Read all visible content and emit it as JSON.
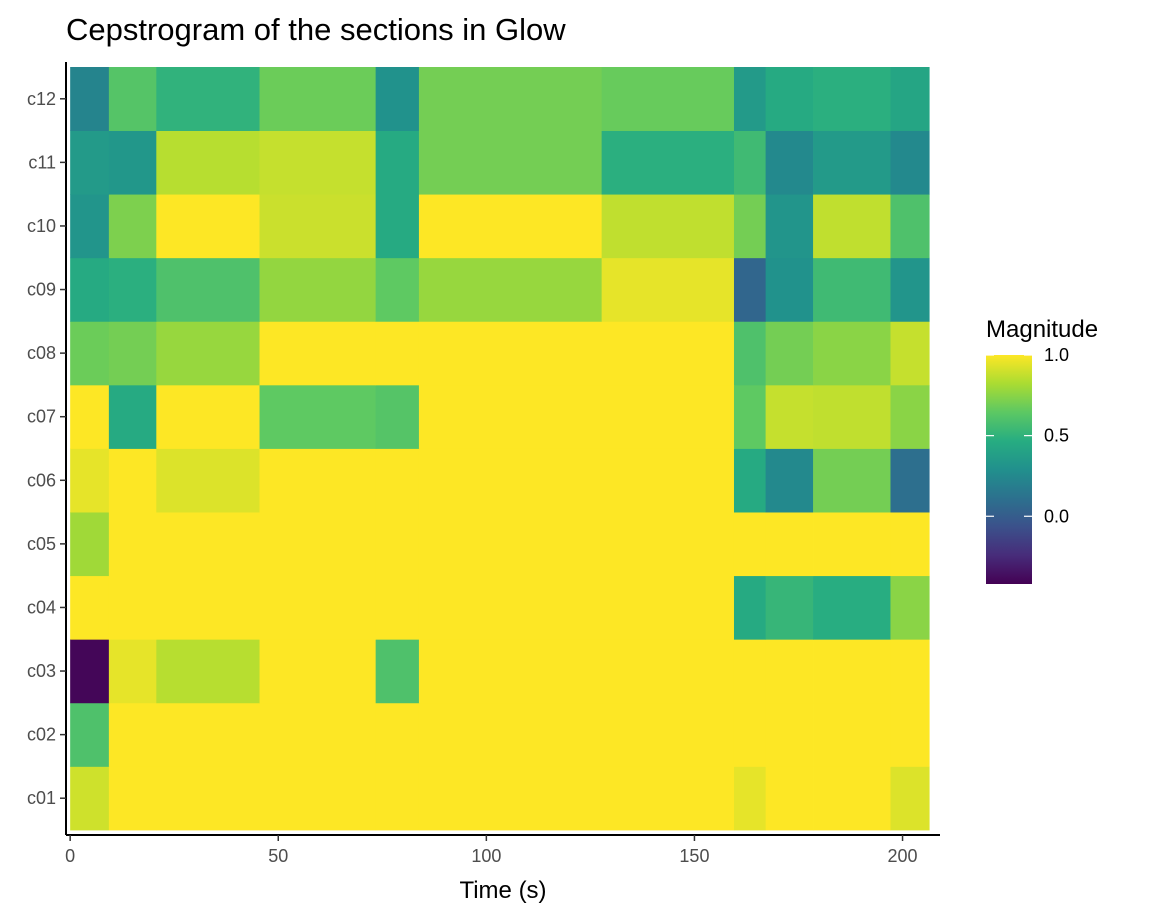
{
  "chart_data": {
    "type": "heatmap",
    "title": "Cepstrogram of the sections in Glow",
    "xlabel": "Time (s)",
    "ylabel": "",
    "xlim": [
      -1,
      209
    ],
    "x_ticks": [
      0,
      50,
      100,
      150,
      200
    ],
    "x_tick_labels": [
      "0",
      "50",
      "100",
      "150",
      "200"
    ],
    "x_edges": [
      0,
      9.3,
      20.7,
      45.5,
      73.4,
      83.8,
      127.7,
      159.5,
      167.1,
      178.5,
      197.1,
      206.4
    ],
    "rows": [
      "c01",
      "c02",
      "c03",
      "c04",
      "c05",
      "c06",
      "c07",
      "c08",
      "c09",
      "c10",
      "c11",
      "c12"
    ],
    "values": [
      [
        0.9,
        1.0,
        1.0,
        1.0,
        1.0,
        1.0,
        1.0,
        0.95,
        1.0,
        1.0,
        0.93
      ],
      [
        0.6,
        1.0,
        1.0,
        1.0,
        1.0,
        1.0,
        1.0,
        1.0,
        1.0,
        1.0,
        1.0
      ],
      [
        -0.4,
        0.95,
        0.85,
        1.0,
        0.6,
        1.0,
        1.0,
        1.0,
        1.0,
        1.0,
        1.0
      ],
      [
        1.0,
        1.0,
        1.0,
        1.0,
        1.0,
        1.0,
        1.0,
        0.45,
        0.52,
        0.47,
        0.75
      ],
      [
        0.8,
        1.0,
        1.0,
        1.0,
        1.0,
        1.0,
        1.0,
        1.0,
        1.0,
        1.0,
        1.0
      ],
      [
        0.95,
        1.0,
        0.93,
        1.0,
        1.0,
        1.0,
        1.0,
        0.45,
        0.25,
        0.7,
        0.1
      ],
      [
        1.0,
        0.45,
        1.0,
        0.65,
        0.62,
        1.0,
        1.0,
        0.65,
        0.88,
        0.87,
        0.75
      ],
      [
        0.68,
        0.7,
        0.78,
        1.0,
        1.0,
        1.0,
        1.0,
        0.6,
        0.7,
        0.75,
        0.88
      ],
      [
        0.45,
        0.48,
        0.6,
        0.77,
        0.65,
        0.78,
        0.95,
        0.05,
        0.3,
        0.55,
        0.32
      ],
      [
        0.32,
        0.72,
        1.0,
        0.89,
        0.45,
        1.0,
        0.87,
        0.7,
        0.32,
        0.87,
        0.6
      ],
      [
        0.35,
        0.33,
        0.85,
        0.88,
        0.45,
        0.7,
        0.48,
        0.55,
        0.25,
        0.35,
        0.25
      ],
      [
        0.22,
        0.62,
        0.5,
        0.68,
        0.3,
        0.7,
        0.67,
        0.35,
        0.45,
        0.48,
        0.42
      ]
    ],
    "legend": {
      "title": "Magnitude",
      "range": [
        -0.42,
        1.0
      ],
      "ticks": [
        0.0,
        0.5,
        1.0
      ],
      "tick_labels": [
        "0.0",
        "0.5",
        "1.0"
      ],
      "position": "right"
    },
    "colormap": [
      "#440154",
      "#472c7a",
      "#3b518b",
      "#2c718e",
      "#21908d",
      "#27ad81",
      "#5cc863",
      "#aadc32",
      "#fde725"
    ],
    "grid": false
  }
}
